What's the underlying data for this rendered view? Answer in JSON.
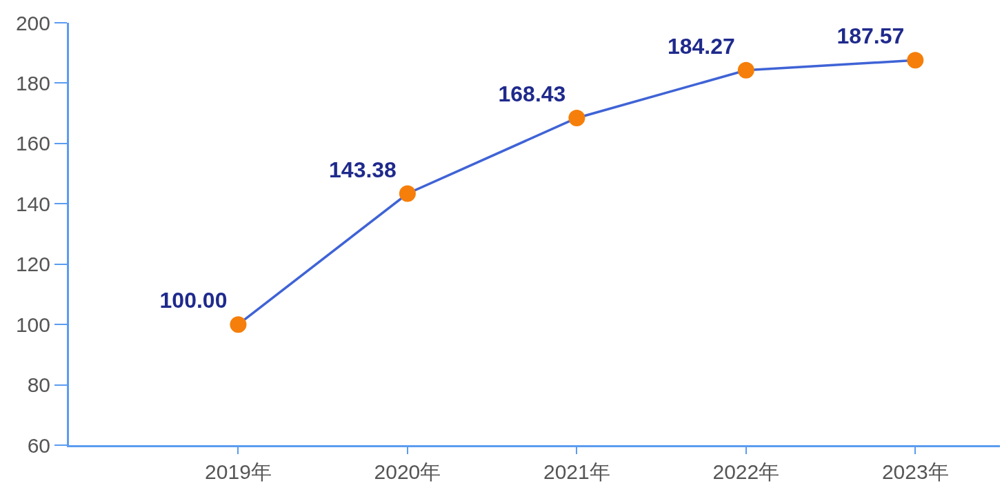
{
  "chart_data": {
    "type": "line",
    "categories": [
      "2019年",
      "2020年",
      "2021年",
      "2022年",
      "2023年"
    ],
    "series": [
      {
        "color": "#3f63d6",
        "colors": [
          "#f57f0a",
          "#f57f0a",
          "#f57f0a",
          "#f57f0a",
          "#f57f0a"
        ],
        "values": [
          100.0,
          143.38,
          168.43,
          184.27,
          187.57
        ],
        "value_labels": [
          "100.00",
          "143.38",
          "168.43",
          "184.27",
          "187.57"
        ]
      }
    ],
    "ylim": [
      60,
      200
    ],
    "yticks": [
      60,
      80,
      100,
      120,
      140,
      160,
      180,
      200
    ],
    "marker": "circle",
    "line_style": "solid"
  }
}
